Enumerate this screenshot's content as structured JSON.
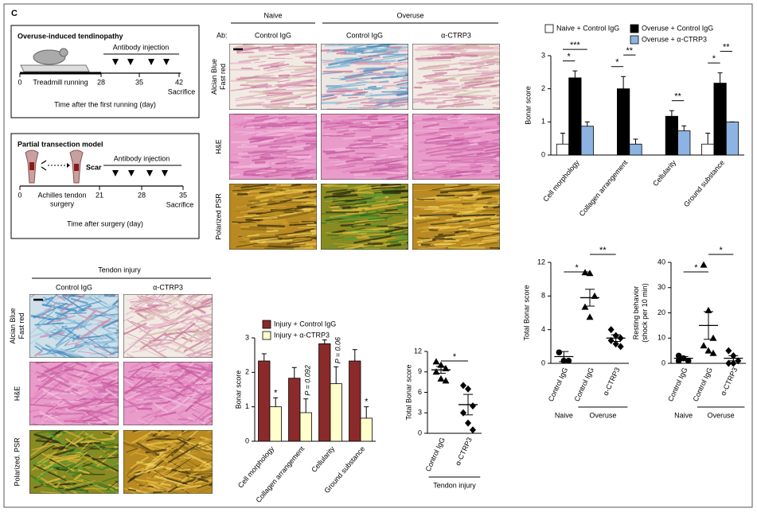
{
  "panel_label": "C",
  "overuse_model": {
    "title": "Overuse-induced tendinopathy",
    "injection": "Antibody injection",
    "days": [
      0,
      28,
      35,
      42
    ],
    "running": "Treadmill running",
    "end": "Sacrifice",
    "axis": "Time after the first running (day)"
  },
  "transection_model": {
    "title": "Partial transection model",
    "scar": "Scar",
    "injection": "Antibody injection",
    "days": [
      0,
      21,
      28,
      35
    ],
    "surgery": [
      "Achilles tendon",
      "surgery"
    ],
    "end": "Sacrifice",
    "axis": "Time after surgery (day)"
  },
  "overuse_histology": {
    "groups": [
      "Naive",
      "Overuse"
    ],
    "ab_label": "Ab:",
    "columns": [
      "Control IgG",
      "Control IgG",
      "α-CTRP3"
    ],
    "rows": [
      [
        "Alcian Blue",
        "Fast red"
      ],
      [
        "H&E"
      ],
      [
        "Polarized PSR"
      ]
    ]
  },
  "injury_histology": {
    "title": "Tendon injury",
    "columns": [
      "Control IgG",
      "α-CTRP3"
    ],
    "rows": [
      [
        "Alcian Blue",
        "Fast red"
      ],
      [
        "H&E"
      ],
      [
        "Polarized. PSR"
      ]
    ]
  },
  "chart_data": [
    {
      "type": "bar",
      "y_label": [
        "Bonar score"
      ],
      "legend": "top",
      "categories": [
        "Cell morphology",
        "Collagen arrangement",
        "Cellularity",
        "Ground substance"
      ],
      "series": [
        {
          "name": "Naive + Control IgG",
          "color": "#ffffff",
          "values": [
            0.33,
            0,
            0,
            0.33
          ],
          "errors": [
            0.33,
            0,
            0,
            0.33
          ]
        },
        {
          "name": "Overuse + Control IgG",
          "color": "#000000",
          "values": [
            2.33,
            2.0,
            1.17,
            2.17
          ],
          "errors": [
            0.21,
            0.37,
            0.17,
            0.31
          ]
        },
        {
          "name": "Overuse + α-CTRP3",
          "color": "#8db3e2",
          "values": [
            0.87,
            0.33,
            0.73,
            1.0
          ],
          "errors": [
            0.13,
            0.15,
            0.15,
            0
          ]
        }
      ],
      "ylim": [
        0,
        3
      ],
      "yticks": [
        0,
        1,
        2,
        3
      ],
      "significance": [
        {
          "label": "*",
          "category": 0,
          "from": 0,
          "to": 1
        },
        {
          "label": "***",
          "category": 0,
          "from": 0,
          "to": 2
        },
        {
          "label": "*",
          "category": 1,
          "from": 0,
          "to": 1
        },
        {
          "label": "**",
          "category": 1,
          "from": 1,
          "to": 2
        },
        {
          "label": "**",
          "category": 2,
          "from": 1,
          "to": 2
        },
        {
          "label": "*",
          "category": 3,
          "from": 0,
          "to": 1
        },
        {
          "label": "**",
          "category": 3,
          "from": 1,
          "to": 2
        }
      ]
    },
    {
      "type": "scatter",
      "y_label": [
        "Total Bonar score"
      ],
      "categories": [
        "Control IgG",
        "Control IgG",
        "α-CTRP3"
      ],
      "groups": [
        "Naive",
        "Overuse"
      ],
      "category_groups": [
        0,
        1,
        1
      ],
      "markers": [
        "circle",
        "triangle",
        "diamond"
      ],
      "points": [
        [
          1.3,
          0.3,
          0.3
        ],
        [
          10.8,
          10.7,
          8.0,
          6.7,
          5.5
        ],
        [
          4.0,
          3.3,
          3.0,
          2.7,
          2.3,
          2.0
        ]
      ],
      "means": [
        0.8,
        7.8,
        3.0
      ],
      "sems": [
        0.6,
        1.0,
        0.4
      ],
      "ylim": [
        0,
        12
      ],
      "yticks": [
        0,
        4,
        8,
        12
      ],
      "significance": [
        {
          "label": "*",
          "from": 0,
          "to": 1
        },
        {
          "label": "**",
          "from": 1,
          "to": 2
        }
      ]
    },
    {
      "type": "scatter",
      "y_label": [
        "Resting behavior",
        "(shock per 10 min)"
      ],
      "categories": [
        "Control IgG",
        "Control IgG",
        "α-CTRP3"
      ],
      "groups": [
        "Naive",
        "Overuse"
      ],
      "category_groups": [
        0,
        1,
        1
      ],
      "markers": [
        "circle",
        "triangle",
        "diamond"
      ],
      "points": [
        [
          3,
          2,
          1,
          1
        ],
        [
          39,
          21,
          10,
          7,
          5,
          4
        ],
        [
          5,
          3,
          1,
          0,
          0
        ]
      ],
      "means": [
        2,
        15,
        2
      ],
      "sems": [
        0.7,
        5.5,
        1
      ],
      "ylim": [
        0,
        40
      ],
      "yticks": [
        0,
        10,
        20,
        30,
        40
      ],
      "significance": [
        {
          "label": "*",
          "from": 0,
          "to": 1
        },
        {
          "label": "*",
          "from": 1,
          "to": 2
        }
      ]
    },
    {
      "type": "bar",
      "y_label": [
        "Bonar score"
      ],
      "legend": "top-left",
      "categories": [
        "Cell morphology",
        "Collagen arrangement",
        "Cellularity",
        "Ground substance"
      ],
      "series": [
        {
          "name": "Injury + Control IgG",
          "color": "#8b2a2a",
          "values": [
            2.33,
            1.83,
            2.83,
            2.33
          ],
          "errors": [
            0.21,
            0.31,
            0.11,
            0.33
          ]
        },
        {
          "name": "Injury + α-CTRP3",
          "color": "#ffffcc",
          "values": [
            1.0,
            0.83,
            1.67,
            0.67
          ],
          "errors": [
            0.26,
            0.4,
            0.49,
            0.33
          ],
          "annotations": [
            "*",
            "P = 0.092",
            "P = 0.06",
            "*"
          ]
        }
      ],
      "ylim": [
        0,
        3
      ],
      "yticks": [
        0,
        1,
        2,
        3
      ],
      "significance": []
    },
    {
      "type": "scatter",
      "y_label": [
        "Total Bonar score"
      ],
      "categories": [
        "Control IgG",
        "α-CTRP3"
      ],
      "groups": [
        "Tendon injury"
      ],
      "category_groups": [
        0,
        0
      ],
      "markers": [
        "triangle",
        "diamond"
      ],
      "points": [
        [
          10.5,
          10.0,
          9.5,
          9.0,
          8.0,
          7.7
        ],
        [
          7.0,
          6.5,
          4.0,
          3.0,
          1.5,
          0.5
        ]
      ],
      "means": [
        9.3,
        4.2
      ],
      "sems": [
        0.5,
        1.5
      ],
      "ylim": [
        0,
        12
      ],
      "yticks": [
        0,
        3,
        6,
        9,
        12
      ],
      "significance": [
        {
          "label": "*",
          "from": 0,
          "to": 1
        }
      ]
    }
  ]
}
